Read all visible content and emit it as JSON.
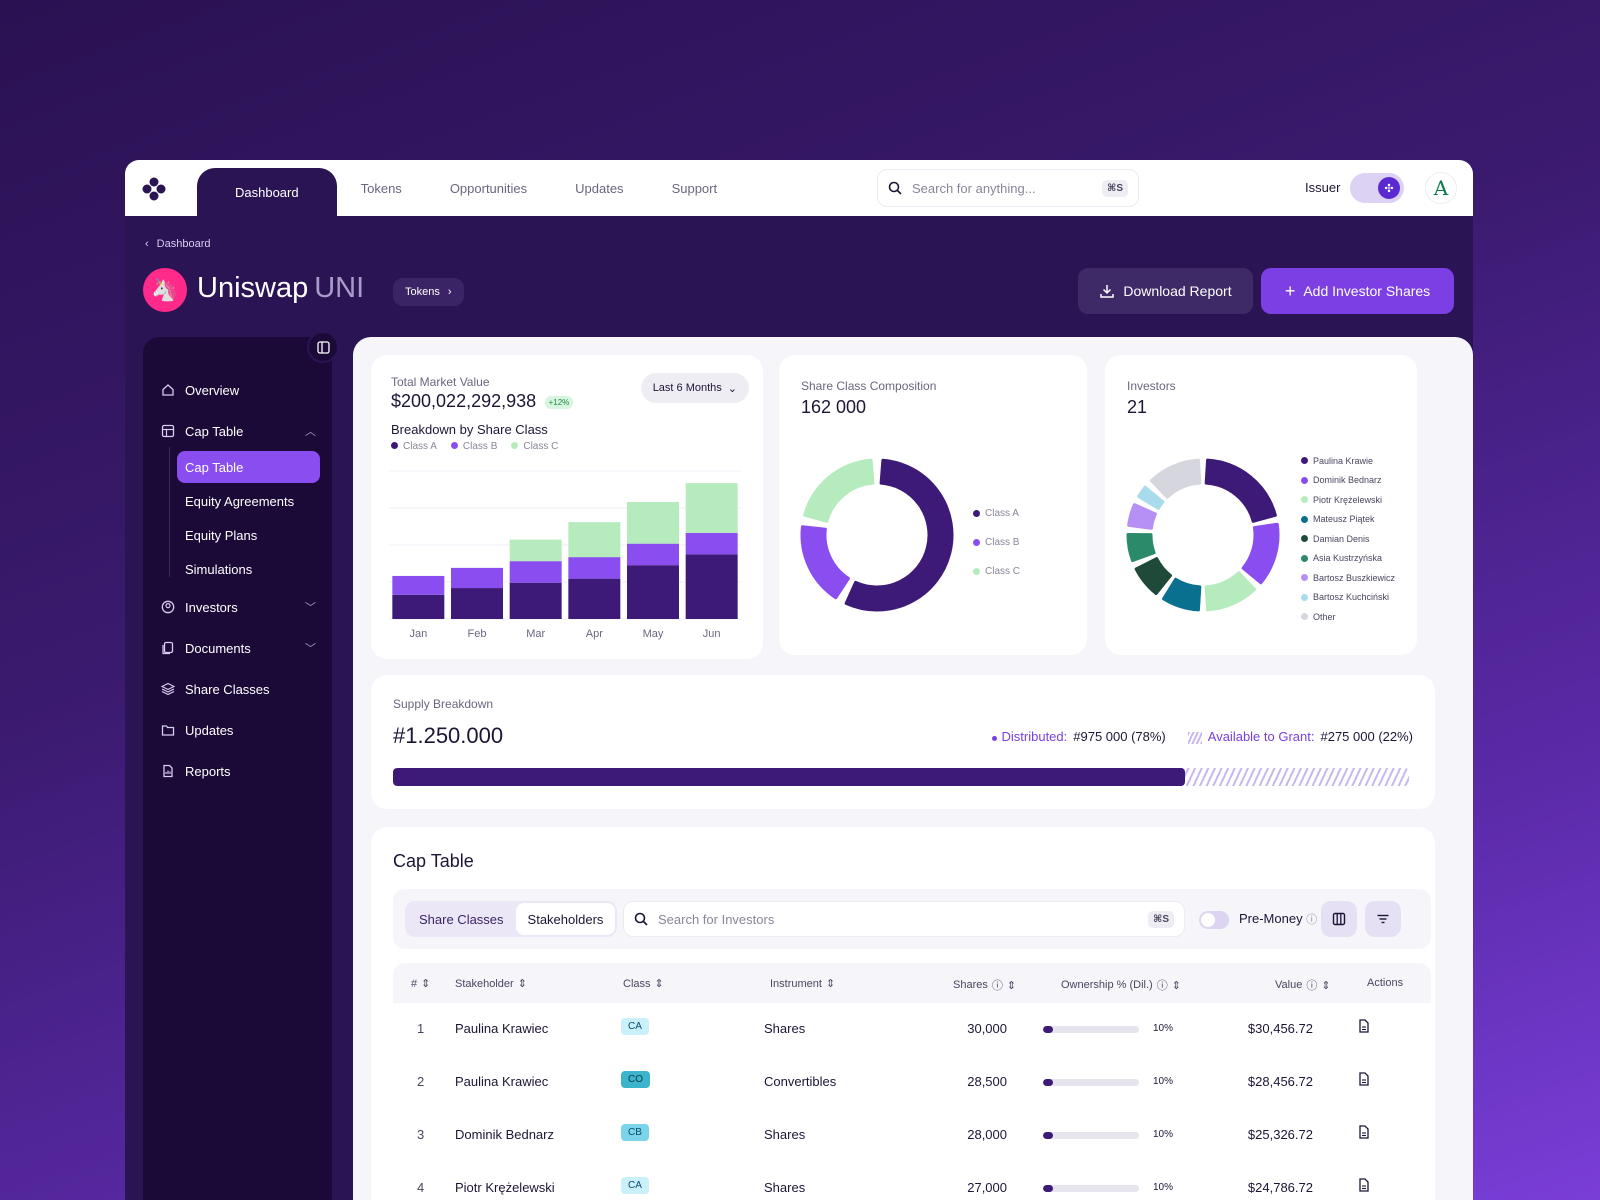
{
  "nav": {
    "tabs": [
      {
        "label": "Dashboard"
      },
      {
        "label": "Tokens"
      },
      {
        "label": "Opportunities"
      },
      {
        "label": "Updates"
      },
      {
        "label": "Support"
      }
    ],
    "search_placeholder": "Search for anything...",
    "search_shortcut": "⌘S",
    "role_label": "Issuer",
    "avatar_letter": "A"
  },
  "header": {
    "breadcrumb": "Dashboard",
    "title": "Uniswap",
    "ticker": "UNI",
    "chip": "Tokens",
    "download_label": "Download Report",
    "add_label": "Add Investor Shares"
  },
  "sidebar": {
    "overview": "Overview",
    "cap_table": "Cap Table",
    "sub_items": [
      "Cap Table",
      "Equity Agreements",
      "Equity Plans",
      "Simulations"
    ],
    "investors": "Investors",
    "documents": "Documents",
    "share_classes": "Share Classes",
    "updates": "Updates",
    "reports": "Reports"
  },
  "market": {
    "label": "Total Market Value",
    "value": "$200,022,292,938",
    "change": "+12%",
    "period": "Last 6 Months",
    "breakdown_title": "Breakdown by Share Class"
  },
  "chart_data": {
    "type": "bar",
    "stacked": true,
    "title": "Breakdown by Share Class",
    "categories": [
      "Jan",
      "Feb",
      "Mar",
      "Apr",
      "May",
      "Jun"
    ],
    "series": [
      {
        "name": "Class A",
        "color": "#3e1a78",
        "values": [
          18,
          23,
          27,
          30,
          40,
          48
        ]
      },
      {
        "name": "Class B",
        "color": "#8a4ef0",
        "values": [
          14,
          15,
          16,
          16,
          16,
          16
        ]
      },
      {
        "name": "Class C",
        "color": "#b6ecbd",
        "values": [
          0,
          0,
          16,
          26,
          31,
          37
        ]
      }
    ],
    "ylim": [
      0,
      110
    ],
    "legend": "top-left"
  },
  "share_composition": {
    "label": "Share Class Composition",
    "value": "162 000",
    "legend": [
      {
        "name": "Class A",
        "color": "#3e1a78",
        "value": 0.58
      },
      {
        "name": "Class B",
        "color": "#8a4ef0",
        "value": 0.2
      },
      {
        "name": "Class C",
        "color": "#b6ecbd",
        "value": 0.22
      }
    ]
  },
  "investors": {
    "label": "Investors",
    "value": "21",
    "legend": [
      {
        "name": "Paulina Krawie",
        "color": "#3e1a78",
        "value": 0.2
      },
      {
        "name": "Dominik Bednarz",
        "color": "#8a4ef0",
        "value": 0.14
      },
      {
        "name": "Piotr Krężelewski",
        "color": "#b6ecbd",
        "value": 0.12
      },
      {
        "name": "Mateusz Piątek",
        "color": "#0a7090",
        "value": 0.09
      },
      {
        "name": "Damian Denis",
        "color": "#1f4a3a",
        "value": 0.08
      },
      {
        "name": "Asia Kustrzyńska",
        "color": "#2a8a6a",
        "value": 0.07
      },
      {
        "name": "Bartosz Buszkiewicz",
        "color": "#b690f4",
        "value": 0.06
      },
      {
        "name": "Bartosz Kuchciński",
        "color": "#a8dcec",
        "value": 0.04
      },
      {
        "name": "Other",
        "color": "#d6d6de",
        "value": 0.12
      }
    ]
  },
  "supply": {
    "label": "Supply Breakdown",
    "value": "#1.250.000",
    "distributed_label": "Distributed:",
    "distributed_value": "#975 000 (78%)",
    "grant_label": "Available to Grant:",
    "grant_value": "#275 000 (22%)",
    "distributed_fraction": 0.78
  },
  "cap_table": {
    "title": "Cap Table",
    "seg_share_classes": "Share Classes",
    "seg_stakeholders": "Stakeholders",
    "search_placeholder": "Search for Investors",
    "search_shortcut": "⌘S",
    "pre_money": "Pre-Money",
    "columns": [
      "#",
      "Stakeholder",
      "Class",
      "Instrument",
      "Shares",
      "Ownership  % (Dil.)",
      "Value",
      "Actions"
    ],
    "rows": [
      {
        "n": "1",
        "name": "Paulina Krawiec",
        "cls": "CA",
        "cls_bg": "#c9f0fb",
        "inst": "Shares",
        "shares": "30,000",
        "own": "10%",
        "own_fraction": 0.1,
        "value": "$30,456.72"
      },
      {
        "n": "2",
        "name": "Paulina Krawiec",
        "cls": "CO",
        "cls_bg": "#3cb4cc",
        "inst": "Convertibles",
        "shares": "28,500",
        "own": "10%",
        "own_fraction": 0.1,
        "value": "$28,456.72"
      },
      {
        "n": "3",
        "name": "Dominik Bednarz",
        "cls": "CB",
        "cls_bg": "#7cd4ea",
        "inst": "Shares",
        "shares": "28,000",
        "own": "10%",
        "own_fraction": 0.1,
        "value": "$25,326.72"
      },
      {
        "n": "4",
        "name": "Piotr Krężelewski",
        "cls": "CA",
        "cls_bg": "#c9f0fb",
        "inst": "Shares",
        "shares": "27,000",
        "own": "10%",
        "own_fraction": 0.1,
        "value": "$24,786.72"
      }
    ]
  }
}
